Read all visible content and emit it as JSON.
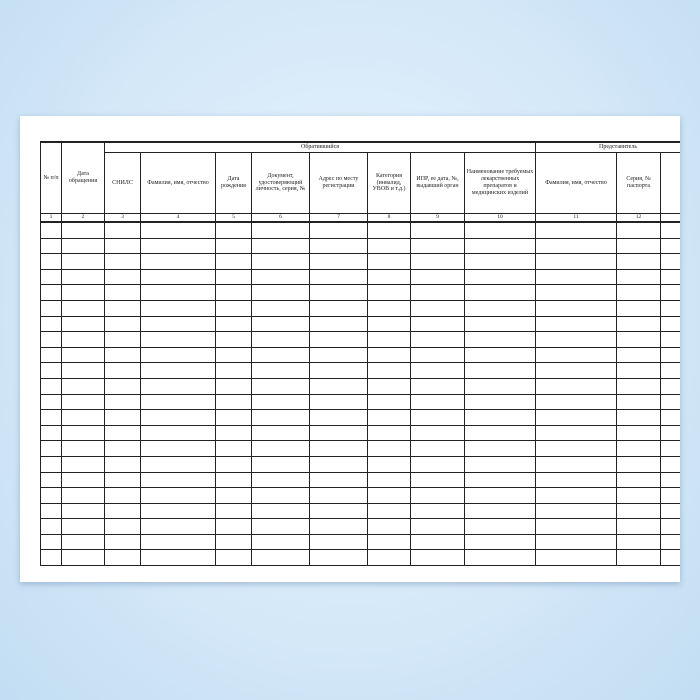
{
  "journal": {
    "group_headers": {
      "applicant": "Обратившийся",
      "representative": "Представитель"
    },
    "columns": [
      {
        "label": "№ п/п",
        "number": "1"
      },
      {
        "label": "Дата обращения",
        "number": "2"
      },
      {
        "label": "СНИЛС",
        "number": "3"
      },
      {
        "label": "Фамилия, имя, отчество",
        "number": "4"
      },
      {
        "label": "Дата рождения",
        "number": "5"
      },
      {
        "label": "Документ, удостоверяющий личность, серия, №",
        "number": "6"
      },
      {
        "label": "Адрес по месту регистрации",
        "number": "7"
      },
      {
        "label": "Категория (инвалид, УВОВ и т.д.)",
        "number": "8"
      },
      {
        "label": "ИПР, ее дата, №, выдавший орган",
        "number": "9"
      },
      {
        "label": "Наименование требуемых лекарственных препаратов и медицинских изделий",
        "number": "10"
      },
      {
        "label": "Фамилия, имя, отчество",
        "number": "11"
      },
      {
        "label": "Серия, № паспорта",
        "number": "12"
      }
    ]
  }
}
